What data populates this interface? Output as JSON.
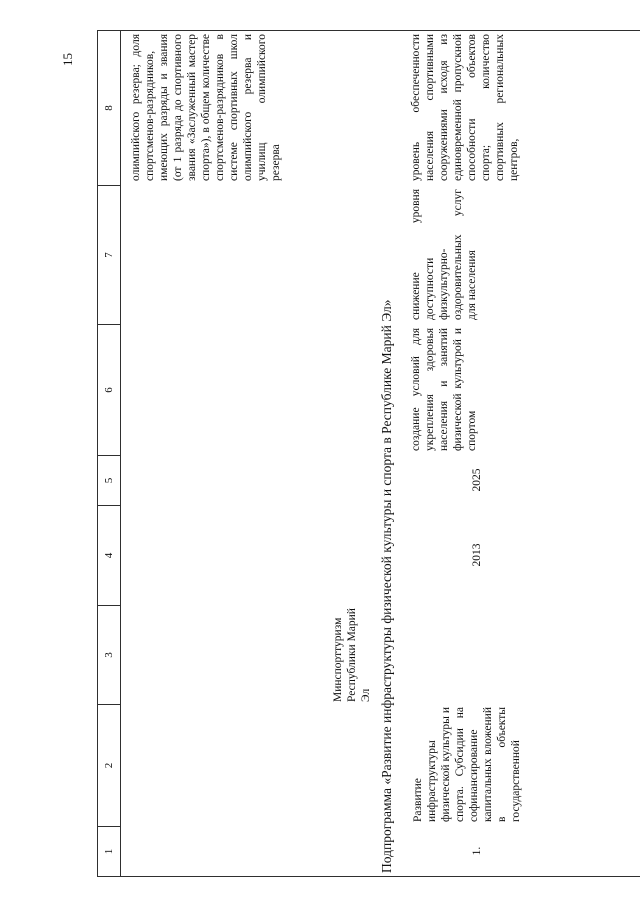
{
  "page": {
    "number": "15"
  },
  "table": {
    "header": [
      "1",
      "2",
      "3",
      "4",
      "5",
      "6",
      "7",
      "8"
    ],
    "continuation_row": {
      "col3": "Минспорттуризм Республики Марий Эл",
      "col8": "олимпийского резерва; доля спортсменов-разрядников, имеющих разряды и звания (от 1 разряда до спортивного звания «Заслуженный мастер спорта»), в общем количестве спортсменов-разрядников в системе спортивных школ олимпийского резерва и училищ олимпийского резерва"
    },
    "subprogram_title": "Подпрограмма «Развитие инфраструктуры физической культуры и спорта в Республике Марий Эл»",
    "data_row": {
      "num": "1.",
      "col2": "Развитие инфраструктуры физической культуры и спорта. Субсидии на софинансирование капитальных вложений в объекты государственной",
      "col4": "2013",
      "col5": "2025",
      "col6": "создание условий для укрепления здоровья населения и занятий физической культурой и спортом",
      "col7": "снижение уровня доступности физкультурно-оздоровительных услуг для населения",
      "col8": "уровень обеспеченности населения спортивными сооружениями исходя из единовременной пропускной способности объектов спорта; количество спортивных региональных центров,"
    }
  }
}
